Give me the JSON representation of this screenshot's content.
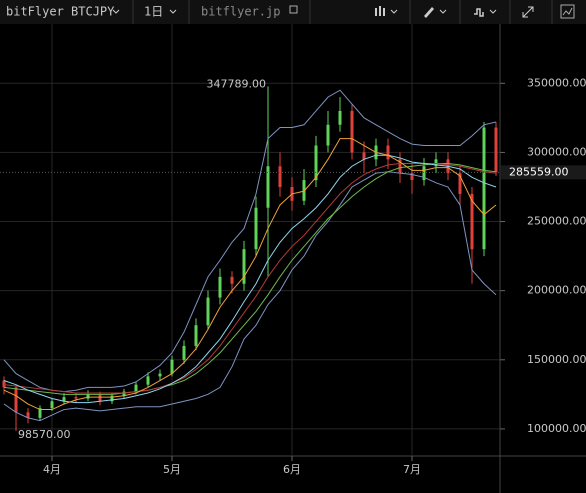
{
  "toolbar": {
    "symbol": "bitFlyer BTCJPY",
    "interval": "1日",
    "source": "bitflyer.jp"
  },
  "chart_data": {
    "type": "candlestick",
    "categories": [
      null,
      null,
      null,
      null,
      "4月",
      null,
      null,
      null,
      null,
      null,
      null,
      null,
      null,
      null,
      "5月",
      null,
      null,
      null,
      null,
      null,
      null,
      null,
      null,
      null,
      "6月",
      null,
      null,
      null,
      null,
      null,
      null,
      null,
      null,
      null,
      "7月",
      null,
      null,
      null,
      null,
      null,
      null,
      null
    ],
    "open": [
      135000,
      130000,
      112000,
      108000,
      115000,
      120000,
      123000,
      122000,
      125000,
      120000,
      124000,
      127000,
      132000,
      138000,
      140000,
      150000,
      160000,
      175000,
      195000,
      210000,
      205000,
      230000,
      260000,
      290000,
      275000,
      265000,
      280000,
      305000,
      320000,
      330000,
      300000,
      295000,
      305000,
      295000,
      285000,
      280000,
      290000,
      295000,
      285000,
      270000,
      230000,
      318000
    ],
    "high": [
      138000,
      132000,
      115000,
      117000,
      122000,
      126000,
      126000,
      128000,
      127000,
      126000,
      129000,
      134000,
      141000,
      143000,
      153000,
      164000,
      180000,
      200000,
      216000,
      214000,
      236000,
      268000,
      347789,
      300000,
      282000,
      288000,
      312000,
      330000,
      340000,
      335000,
      308000,
      310000,
      310000,
      300000,
      292000,
      296000,
      300000,
      300000,
      290000,
      275000,
      322000,
      322000
    ],
    "low": [
      125000,
      98570,
      104000,
      106000,
      113000,
      118000,
      119000,
      120000,
      117000,
      118000,
      122000,
      125000,
      130000,
      135000,
      138000,
      147000,
      157000,
      172000,
      190000,
      198000,
      200000,
      225000,
      210000,
      268000,
      258000,
      262000,
      275000,
      300000,
      315000,
      295000,
      285000,
      290000,
      288000,
      278000,
      270000,
      276000,
      285000,
      280000,
      262000,
      205000,
      225000,
      283000
    ],
    "close": [
      130000,
      112000,
      108000,
      115000,
      120000,
      123000,
      122000,
      125000,
      120000,
      124000,
      127000,
      132000,
      138000,
      140000,
      150000,
      160000,
      175000,
      195000,
      210000,
      205000,
      230000,
      260000,
      290000,
      275000,
      265000,
      280000,
      305000,
      320000,
      330000,
      300000,
      295000,
      305000,
      295000,
      285000,
      280000,
      290000,
      295000,
      285000,
      270000,
      230000,
      318000,
      285559
    ],
    "up_color": "#5fd35a",
    "down_color": "#e0413a",
    "lines": [
      {
        "color": "#7f93c2",
        "values": [
          150000,
          140000,
          135000,
          130000,
          128000,
          127000,
          128000,
          130000,
          130000,
          130000,
          131000,
          134000,
          140000,
          146000,
          155000,
          170000,
          190000,
          210000,
          222000,
          235000,
          245000,
          270000,
          310000,
          318000,
          318000,
          320000,
          330000,
          340000,
          345000,
          335000,
          325000,
          320000,
          315000,
          310000,
          306000,
          305000,
          305000,
          305000,
          305000,
          312000,
          320000,
          322000
        ]
      },
      {
        "color": "#7f93c2",
        "values": [
          118000,
          112000,
          108000,
          106000,
          110000,
          114000,
          115000,
          114000,
          113000,
          114000,
          115000,
          116000,
          116000,
          116000,
          118000,
          120000,
          122000,
          125000,
          130000,
          145000,
          165000,
          175000,
          190000,
          200000,
          215000,
          225000,
          240000,
          250000,
          262000,
          275000,
          280000,
          285000,
          286000,
          285000,
          284000,
          282000,
          278000,
          275000,
          262000,
          215000,
          205000,
          197000
        ]
      },
      {
        "color": "#6dbb4a",
        "values": [
          130000,
          129000,
          128000,
          127000,
          126000,
          125000,
          125000,
          125000,
          125000,
          125000,
          126000,
          127000,
          128000,
          130000,
          132000,
          135000,
          140000,
          147000,
          155000,
          165000,
          175000,
          185000,
          197000,
          210000,
          222000,
          232000,
          242000,
          252000,
          260000,
          268000,
          275000,
          281000,
          286000,
          289000,
          290000,
          291000,
          292000,
          292000,
          291000,
          289000,
          287000,
          286000
        ]
      },
      {
        "color": "#b23a3a",
        "values": [
          132000,
          131000,
          130000,
          129000,
          128000,
          127000,
          126000,
          126000,
          126000,
          126000,
          126000,
          127000,
          128000,
          130000,
          133000,
          137000,
          143000,
          150000,
          160000,
          172000,
          184000,
          196000,
          210000,
          222000,
          232000,
          240000,
          250000,
          260000,
          270000,
          278000,
          284000,
          288000,
          291000,
          292000,
          292000,
          292000,
          292000,
          291000,
          290000,
          288000,
          286000,
          285000
        ]
      },
      {
        "color": "#8fd6ef",
        "values": [
          135000,
          132000,
          128000,
          125000,
          122000,
          120000,
          119000,
          119000,
          120000,
          121000,
          122000,
          124000,
          126000,
          129000,
          133000,
          138000,
          145000,
          155000,
          165000,
          178000,
          192000,
          205000,
          222000,
          235000,
          245000,
          252000,
          260000,
          270000,
          282000,
          290000,
          295000,
          298000,
          298000,
          296000,
          293000,
          292000,
          291000,
          290000,
          288000,
          282000,
          278000,
          275000
        ]
      },
      {
        "color": "#f0a23a",
        "values": [
          128000,
          124000,
          118000,
          114000,
          114000,
          118000,
          121000,
          123000,
          123000,
          123000,
          124000,
          126000,
          130000,
          135000,
          140000,
          148000,
          158000,
          172000,
          188000,
          200000,
          210000,
          225000,
          245000,
          262000,
          270000,
          272000,
          282000,
          295000,
          310000,
          310000,
          305000,
          300000,
          298000,
          293000,
          287000,
          287000,
          289000,
          289000,
          283000,
          265000,
          255000,
          262000
        ]
      }
    ],
    "annotations": [
      {
        "value": 347789,
        "label": "347789.00"
      },
      {
        "value": 98570,
        "label": "98570.00"
      }
    ],
    "last_price": {
      "value": 285559,
      "label": "285559.00"
    },
    "ylim": [
      80400,
      392900
    ],
    "yticks": [
      {
        "value": 100000,
        "label": "100000.00"
      },
      {
        "value": 150000,
        "label": "150000.00"
      },
      {
        "value": 200000,
        "label": "200000.00"
      },
      {
        "value": 250000,
        "label": "250000.00"
      },
      {
        "value": 300000,
        "label": "300000.00"
      },
      {
        "value": 350000,
        "label": "350000.00"
      }
    ],
    "grid": true
  }
}
